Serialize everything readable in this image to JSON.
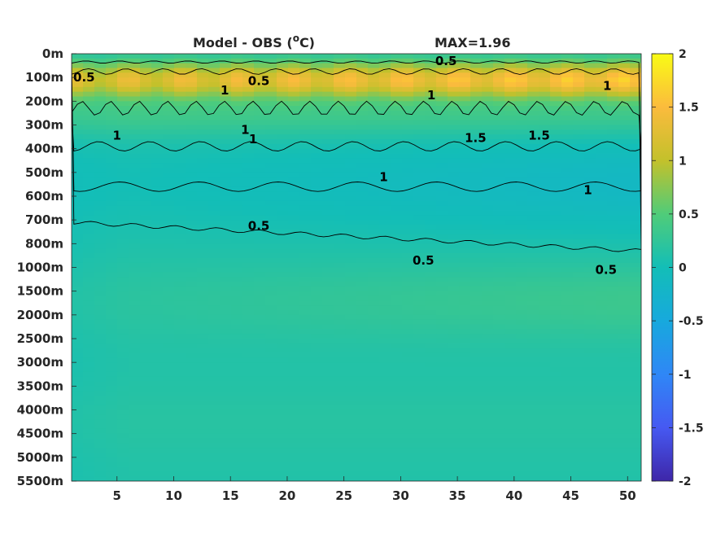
{
  "chart_data": {
    "type": "heatmap",
    "title": "Model - OBS (",
    "title_unit_super": "o",
    "title_unit_rest": "C)",
    "annotation": "MAX=1.96",
    "colormap": "parula",
    "x": {
      "ticks": [
        5,
        10,
        15,
        20,
        25,
        30,
        35,
        40,
        45,
        50
      ],
      "lim": [
        1,
        51.2
      ]
    },
    "y": {
      "ticks": [
        "0m",
        "100m",
        "200m",
        "300m",
        "400m",
        "500m",
        "600m",
        "700m",
        "800m",
        "1000m",
        "1500m",
        "2000m",
        "2500m",
        "3000m",
        "3500m",
        "4000m",
        "4500m",
        "5000m",
        "5500m"
      ],
      "reversed": true
    },
    "colorbar": {
      "ticks": [
        2,
        1.5,
        1,
        0.5,
        0,
        -0.5,
        -1,
        -1.5,
        -2
      ],
      "lim": [
        -2,
        2
      ]
    },
    "contour_levels": [
      0.5,
      1,
      1.5
    ],
    "contour_labels": [
      {
        "text": "0.5",
        "x": 17.5,
        "level": 1.15
      },
      {
        "text": "1",
        "x": 14.5,
        "level": 1.55
      },
      {
        "text": "1",
        "x": 17,
        "level": 3.6
      },
      {
        "text": "1",
        "x": 5,
        "level": 3.45
      },
      {
        "text": "1",
        "x": 16.3,
        "level": 3.2
      },
      {
        "text": "0.5",
        "x": 2.1,
        "level": 1.0
      },
      {
        "text": "0.5",
        "x": 17.5,
        "level": 7.25
      },
      {
        "text": "1",
        "x": 28.5,
        "level": 5.2
      },
      {
        "text": "1",
        "x": 32.7,
        "level": 1.75
      },
      {
        "text": "0.5",
        "x": 34,
        "level": 0.3
      },
      {
        "text": "0.5",
        "x": 32,
        "level": 8.7
      },
      {
        "text": "1.5",
        "x": 36.6,
        "level": 3.55
      },
      {
        "text": "1.5",
        "x": 42.2,
        "level": 3.45
      },
      {
        "text": "1",
        "x": 46.5,
        "level": 5.75
      },
      {
        "text": "1",
        "x": 48.2,
        "level": 1.35
      },
      {
        "text": "0.5",
        "x": 48.1,
        "level": 9.1
      }
    ],
    "field_summary": {
      "max": 1.96,
      "warm_band_depths": "50m-250m",
      "deep_ocean_anomaly": "approximately -0.2 to 0.4"
    }
  },
  "colors": {
    "axis": "#262626",
    "contour": "#000000"
  }
}
